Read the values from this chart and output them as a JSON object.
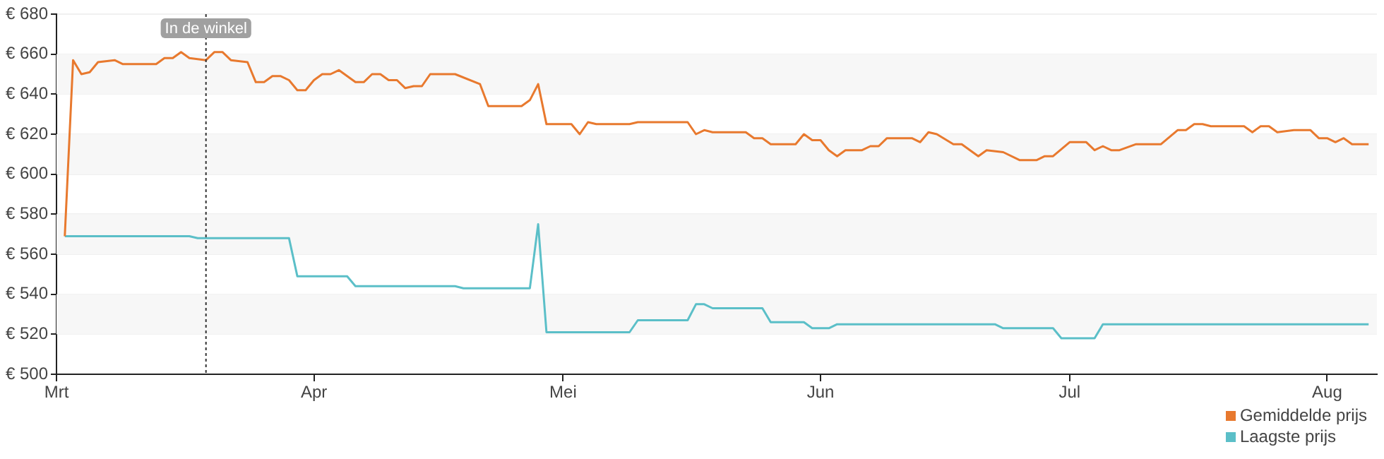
{
  "chart_data": {
    "type": "line",
    "xlim": [
      "--03-01",
      "--08-07"
    ],
    "xticks": [
      {
        "value": "--03-01",
        "label": "Mrt"
      },
      {
        "value": "--04-01",
        "label": "Apr"
      },
      {
        "value": "--05-01",
        "label": "Mei"
      },
      {
        "value": "--06-01",
        "label": "Jun"
      },
      {
        "value": "--07-01",
        "label": "Jul"
      },
      {
        "value": "--08-01",
        "label": "Aug"
      }
    ],
    "ylim": [
      500,
      680
    ],
    "yticks": [
      {
        "value": 500,
        "label": "€ 500"
      },
      {
        "value": 520,
        "label": "€ 520"
      },
      {
        "value": 540,
        "label": "€ 540"
      },
      {
        "value": 560,
        "label": "€ 560"
      },
      {
        "value": 580,
        "label": "€ 580"
      },
      {
        "value": 600,
        "label": "€ 600"
      },
      {
        "value": 620,
        "label": "€ 620"
      },
      {
        "value": 640,
        "label": "€ 640"
      },
      {
        "value": 660,
        "label": "€ 660"
      },
      {
        "value": 680,
        "label": "€ 680"
      }
    ],
    "grid": "y",
    "legend": "bottom right",
    "marker": "none",
    "line_style": "solid",
    "ref_lines": [
      {
        "axis": "x",
        "value": "--03-19",
        "label": "In de winkel",
        "line_style": "dotted",
        "color": "#333333"
      }
    ],
    "series": [
      {
        "name": "Gemiddelde prijs",
        "color": "#e8792e",
        "x": [
          "--03-02",
          "--03-03",
          "--03-04",
          "--03-05",
          "--03-06",
          "--03-08",
          "--03-09",
          "--03-13",
          "--03-14",
          "--03-15",
          "--03-16",
          "--03-17",
          "--03-19",
          "--03-20",
          "--03-21",
          "--03-22",
          "--03-24",
          "--03-25",
          "--03-26",
          "--03-27",
          "--03-28",
          "--03-29",
          "--03-30",
          "--03-31",
          "--04-01",
          "--04-02",
          "--04-03",
          "--04-04",
          "--04-05",
          "--04-06",
          "--04-07",
          "--04-08",
          "--04-09",
          "--04-10",
          "--04-11",
          "--04-12",
          "--04-13",
          "--04-14",
          "--04-15",
          "--04-18",
          "--04-21",
          "--04-22",
          "--04-26",
          "--04-27",
          "--04-28",
          "--04-29",
          "--05-02",
          "--05-03",
          "--05-04",
          "--05-05",
          "--05-09",
          "--05-10",
          "--05-16",
          "--05-17",
          "--05-18",
          "--05-19",
          "--05-23",
          "--05-24",
          "--05-25",
          "--05-26",
          "--05-29",
          "--05-30",
          "--05-31",
          "--06-01",
          "--06-02",
          "--06-03",
          "--06-04",
          "--06-06",
          "--06-07",
          "--06-08",
          "--06-09",
          "--06-12",
          "--06-13",
          "--06-14",
          "--06-15",
          "--06-17",
          "--06-18",
          "--06-20",
          "--06-21",
          "--06-23",
          "--06-25",
          "--06-27",
          "--06-28",
          "--06-29",
          "--07-01",
          "--07-03",
          "--07-04",
          "--07-05",
          "--07-06",
          "--07-07",
          "--07-09",
          "--07-12",
          "--07-14",
          "--07-15",
          "--07-16",
          "--07-17",
          "--07-18",
          "--07-22",
          "--07-23",
          "--07-24",
          "--07-25",
          "--07-26",
          "--07-28",
          "--07-30",
          "--07-31",
          "--08-01",
          "--08-02",
          "--08-03",
          "--08-04",
          "--08-06"
        ],
        "values": [
          569,
          657,
          650,
          651,
          656,
          657,
          655,
          655,
          658,
          658,
          661,
          658,
          657,
          661,
          661,
          657,
          656,
          646,
          646,
          649,
          649,
          647,
          642,
          642,
          647,
          650,
          650,
          652,
          649,
          646,
          646,
          650,
          650,
          647,
          647,
          643,
          644,
          644,
          650,
          650,
          645,
          634,
          634,
          637,
          645,
          625,
          625,
          620,
          626,
          625,
          625,
          626,
          626,
          620,
          622,
          621,
          621,
          618,
          618,
          615,
          615,
          620,
          617,
          617,
          612,
          609,
          612,
          612,
          614,
          614,
          618,
          618,
          616,
          621,
          620,
          615,
          615,
          609,
          612,
          611,
          607,
          607,
          609,
          609,
          616,
          616,
          612,
          614,
          612,
          612,
          615,
          615,
          622,
          622,
          625,
          625,
          624,
          624,
          621,
          624,
          624,
          621,
          622,
          622,
          618,
          618,
          616,
          618,
          615,
          615
        ]
      },
      {
        "name": "Laagste prijs",
        "color": "#5bbfc8",
        "x": [
          "--03-02",
          "--03-17",
          "--03-18",
          "--03-29",
          "--03-30",
          "--04-05",
          "--04-06",
          "--04-18",
          "--04-19",
          "--04-27",
          "--04-28",
          "--04-29",
          "--05-09",
          "--05-10",
          "--05-16",
          "--05-17",
          "--05-18",
          "--05-19",
          "--05-25",
          "--05-26",
          "--05-30",
          "--05-31",
          "--06-02",
          "--06-03",
          "--06-22",
          "--06-23",
          "--06-29",
          "--06-30",
          "--07-04",
          "--07-05",
          "--08-06"
        ],
        "values": [
          569,
          569,
          568,
          568,
          549,
          549,
          544,
          544,
          543,
          543,
          575,
          521,
          521,
          527,
          527,
          535,
          535,
          533,
          533,
          526,
          526,
          523,
          523,
          525,
          525,
          523,
          523,
          518,
          518,
          525,
          525
        ]
      }
    ]
  }
}
